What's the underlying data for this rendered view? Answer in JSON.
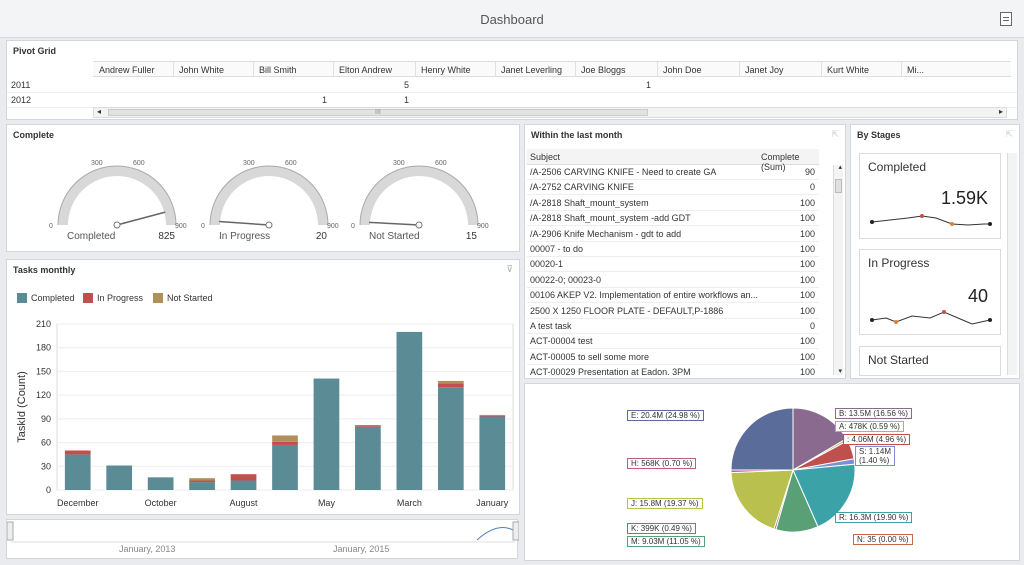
{
  "window": {
    "title": "Dashboard",
    "export_icon": "export-icon"
  },
  "pivot": {
    "title": "Pivot Grid",
    "columns": [
      "Andrew Fuller",
      "John  White",
      "Bill Smith",
      "Elton  Andrew",
      "Henry White",
      "Janet Leverling",
      "Joe Bloggs",
      "John Doe",
      "Janet Joy",
      "Kurt White",
      "Mi..."
    ],
    "rows": [
      {
        "label": "2011",
        "values": [
          "",
          "",
          "",
          "5",
          "",
          "",
          "1",
          "",
          "",
          "",
          ""
        ]
      },
      {
        "label": "2012",
        "values": [
          "",
          "",
          "1",
          "1",
          "",
          "",
          "",
          "",
          "",
          "",
          ""
        ]
      }
    ],
    "scroll_glyph": "III"
  },
  "complete": {
    "title": "Complete",
    "gauges": [
      {
        "name": "Completed",
        "value": "825",
        "fraction": 0.917
      },
      {
        "name": "In Progress",
        "value": "20",
        "fraction": 0.022
      },
      {
        "name": "Not Started",
        "value": "15",
        "fraction": 0.017
      }
    ],
    "ticks": [
      "0",
      "300",
      "600",
      "900"
    ]
  },
  "tasks": {
    "title": "Tasks monthly",
    "legend": [
      {
        "name": "Completed",
        "color": "#5b8c96"
      },
      {
        "name": "In Progress",
        "color": "#c0504d"
      },
      {
        "name": "Not Started",
        "color": "#b0905a"
      }
    ],
    "ylabel": "TaskId (Count)",
    "range_labels": [
      "January, 2013",
      "January, 2015"
    ]
  },
  "chart_data": {
    "type": "bar",
    "ylabel": "TaskId (Count)",
    "ylim": [
      0,
      210
    ],
    "yticks": [
      0,
      30,
      60,
      90,
      120,
      150,
      180,
      210
    ],
    "x_tick_labels": [
      "December",
      "October",
      "August",
      "May",
      "March",
      "January"
    ],
    "series": [
      {
        "name": "Completed",
        "values": [
          45,
          31,
          16,
          10,
          12,
          57,
          141,
          80,
          200,
          130,
          93
        ]
      },
      {
        "name": "In Progress",
        "values": [
          5,
          0,
          0,
          2,
          8,
          4,
          0,
          2,
          0,
          5,
          1
        ]
      },
      {
        "name": "Not Started",
        "values": [
          0,
          0,
          0,
          3,
          0,
          8,
          0,
          0,
          0,
          3,
          1
        ]
      }
    ]
  },
  "recent": {
    "title": "Within the last month",
    "columns": [
      "Subject",
      "Complete (Sum)"
    ],
    "rows": [
      {
        "subject": "/A-2506 CARVING KNIFE - Need to create GA",
        "value": "90"
      },
      {
        "subject": "/A-2752 CARVING KNIFE",
        "value": "0"
      },
      {
        "subject": "/A-2818 Shaft_mount_system",
        "value": "100"
      },
      {
        "subject": "/A-2818 Shaft_mount_system -add GDT",
        "value": "100"
      },
      {
        "subject": "/A-2906 Knife Mechanism - gdt to add",
        "value": "100"
      },
      {
        "subject": "00007 - to do",
        "value": "100"
      },
      {
        "subject": "00020-1",
        "value": "100"
      },
      {
        "subject": "00022-0; 00023-0",
        "value": "100"
      },
      {
        "subject": "00106 AKEP V2. Implementation of entire workflows an...",
        "value": "100"
      },
      {
        "subject": "2500 X 1250 FLOOR PLATE - DEFAULT,P-1886",
        "value": "100"
      },
      {
        "subject": "A test task",
        "value": "0"
      },
      {
        "subject": "ACT-00004 test",
        "value": "100"
      },
      {
        "subject": "ACT-00005 to sell some more",
        "value": "100"
      },
      {
        "subject": "ACT-00029 Presentation at Eadon. 3PM",
        "value": "100"
      }
    ]
  },
  "stages": {
    "title": "By Stages",
    "cards": [
      {
        "name": "Completed",
        "value": "1.59K"
      },
      {
        "name": "In Progress",
        "value": "40"
      },
      {
        "name": "Not Started",
        "value": ""
      }
    ]
  },
  "pie": {
    "slices": [
      {
        "label": "B: 13.5M (16.56 %)",
        "color": "#8a6a8e",
        "pct": 16.56
      },
      {
        "label": "A: 478K (0.59 %)",
        "color": "#b7b35a",
        "pct": 0.59
      },
      {
        "label": ": 4.06M (4.96 %)",
        "color": "#c0504d",
        "pct": 4.96
      },
      {
        "label": "S: 1.14M\n(1.40 %)",
        "color": "#7b8fd1",
        "pct": 1.4
      },
      {
        "label": "R: 16.3M (19.90 %)",
        "color": "#3ba3a8",
        "pct": 19.9
      },
      {
        "label": "N: 35 (0.00 %)",
        "color": "#c46a4a",
        "pct": 0.0
      },
      {
        "label": "M: 9.03M (11.05 %)",
        "color": "#5aa077",
        "pct": 11.05
      },
      {
        "label": "K: 399K (0.49 %)",
        "color": "#a06a6a",
        "pct": 0.49
      },
      {
        "label": "J: 15.8M (19.37 %)",
        "color": "#b9c04e",
        "pct": 19.37
      },
      {
        "label": "H: 568K (0.70 %)",
        "color": "#c05a8a",
        "pct": 0.7
      },
      {
        "label": "E: 20.4M (24.98 %)",
        "color": "#5a6c9a",
        "pct": 24.98
      }
    ]
  }
}
